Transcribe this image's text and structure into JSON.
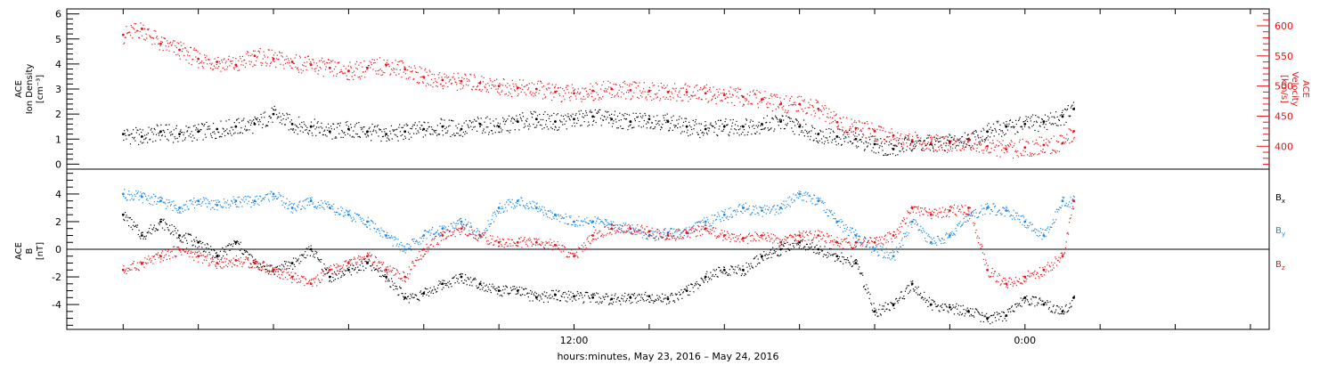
{
  "chart_data": [
    {
      "type": "scatter",
      "panel": "top",
      "left_axis": {
        "label_lines": [
          "ACE",
          "Ion Density",
          "[cm⁻³]"
        ],
        "ticks": [
          "0",
          "1",
          "2",
          "3",
          "4",
          "5",
          "6"
        ],
        "ylim": [
          -0.2,
          6.2
        ]
      },
      "right_axis": {
        "label_lines": [
          "ACE",
          "Velocity",
          "[km/s]"
        ],
        "ticks": [
          "400",
          "450",
          "500",
          "550",
          "600"
        ],
        "ylim": [
          362,
          628
        ],
        "color": "#e8141a"
      },
      "series": [
        {
          "name": "Ion Density",
          "axis": "left",
          "color": "#000000",
          "x": [
            0,
            0.5,
            1,
            1.5,
            2,
            2.5,
            3,
            3.5,
            4,
            4.5,
            5,
            5.5,
            6,
            6.5,
            7,
            7.5,
            8,
            8.5,
            9,
            9.5,
            10,
            10.5,
            11,
            11.5,
            12,
            12.5,
            13,
            13.5,
            14,
            14.5,
            15,
            15.5,
            16,
            16.5,
            17,
            17.5,
            18,
            18.5,
            19,
            19.5,
            20,
            20.5,
            21,
            21.5,
            22,
            22.5,
            23,
            23.5,
            24,
            24.5,
            25,
            25.3
          ],
          "y": [
            1.2,
            1.1,
            1.3,
            1.2,
            1.3,
            1.4,
            1.5,
            1.6,
            2.0,
            1.6,
            1.5,
            1.3,
            1.4,
            1.3,
            1.2,
            1.3,
            1.4,
            1.5,
            1.4,
            1.6,
            1.5,
            1.7,
            1.8,
            1.7,
            1.8,
            1.9,
            1.8,
            1.7,
            1.8,
            1.7,
            1.5,
            1.4,
            1.5,
            1.5,
            1.6,
            1.7,
            1.5,
            1.2,
            1.1,
            1.0,
            0.8,
            0.6,
            0.9,
            0.8,
            0.9,
            1.0,
            1.3,
            1.5,
            1.6,
            1.7,
            1.9,
            2.2
          ]
        },
        {
          "name": "Velocity",
          "axis": "right",
          "color": "#e8141a",
          "x": [
            0,
            0.5,
            1,
            1.5,
            2,
            2.5,
            3,
            3.5,
            4,
            4.5,
            5,
            5.5,
            6,
            6.5,
            7,
            7.5,
            8,
            8.5,
            9,
            9.5,
            10,
            10.5,
            11,
            11.5,
            12,
            12.5,
            13,
            13.5,
            14,
            14.5,
            15,
            15.5,
            16,
            16.5,
            17,
            17.5,
            18,
            18.5,
            19,
            19.5,
            20,
            20.5,
            21,
            21.5,
            22,
            22.5,
            23,
            23.5,
            24,
            24.5,
            25,
            25.3
          ],
          "y": [
            585,
            595,
            570,
            560,
            545,
            540,
            535,
            550,
            545,
            540,
            535,
            530,
            525,
            530,
            535,
            528,
            515,
            510,
            508,
            505,
            500,
            497,
            495,
            490,
            488,
            492,
            495,
            493,
            492,
            490,
            490,
            488,
            485,
            482,
            478,
            470,
            470,
            462,
            440,
            430,
            425,
            418,
            410,
            405,
            405,
            410,
            400,
            395,
            398,
            402,
            405,
            425
          ]
        }
      ]
    },
    {
      "type": "scatter",
      "panel": "bottom",
      "left_axis": {
        "label_lines": [
          "ACE",
          "B",
          "[nT]"
        ],
        "ticks": [
          "-4",
          "-2",
          "0",
          "2",
          "4"
        ],
        "ylim": [
          -5.8,
          5.8
        ]
      },
      "zero_line": 0,
      "series": [
        {
          "name": "Bx",
          "color": "#000000",
          "x": [
            0,
            0.5,
            1,
            1.5,
            2,
            2.5,
            3,
            3.5,
            4,
            4.5,
            5,
            5.5,
            6,
            6.5,
            7,
            7.5,
            8,
            8.5,
            9,
            9.5,
            10,
            10.5,
            11,
            11.5,
            12,
            12.5,
            13,
            13.5,
            14,
            14.5,
            15,
            15.5,
            16,
            16.5,
            17,
            17.5,
            18,
            18.5,
            19,
            19.5,
            20,
            20.5,
            21,
            21.5,
            22,
            22.5,
            23,
            23.5,
            24,
            24.5,
            25,
            25.3
          ],
          "y": [
            2.5,
            1.0,
            2.0,
            1.0,
            0.5,
            -0.5,
            0.5,
            -1.0,
            -1.5,
            -1.0,
            0.0,
            -2.0,
            -1.5,
            -1.0,
            -2.0,
            -3.5,
            -3.2,
            -2.5,
            -2.0,
            -2.5,
            -3.0,
            -3.0,
            -3.5,
            -3.3,
            -3.4,
            -3.5,
            -3.6,
            -3.5,
            -3.4,
            -3.6,
            -3.0,
            -2.0,
            -1.5,
            -1.5,
            -0.5,
            0.0,
            0.5,
            0.0,
            -0.5,
            -1.0,
            -4.5,
            -4.0,
            -2.5,
            -4.0,
            -4.2,
            -4.5,
            -5.0,
            -4.8,
            -3.5,
            -4.0,
            -4.5,
            -3.5
          ]
        },
        {
          "name": "By",
          "color": "#1e88e5",
          "x": [
            0,
            0.5,
            1,
            1.5,
            2,
            2.5,
            3,
            3.5,
            4,
            4.5,
            5,
            5.5,
            6,
            6.5,
            7,
            7.5,
            8,
            8.5,
            9,
            9.5,
            10,
            10.5,
            11,
            11.5,
            12,
            12.5,
            13,
            13.5,
            14,
            14.5,
            15,
            15.5,
            16,
            16.5,
            17,
            17.5,
            18,
            18.5,
            19,
            19.5,
            20,
            20.5,
            21,
            21.5,
            22,
            22.5,
            23,
            23.5,
            24,
            24.5,
            25,
            25.3
          ],
          "y": [
            4.0,
            3.8,
            3.5,
            3.0,
            3.5,
            3.2,
            3.5,
            3.5,
            4.0,
            3.0,
            3.5,
            3.0,
            2.5,
            2.0,
            1.0,
            0.0,
            1.0,
            1.5,
            2.0,
            1.0,
            3.0,
            3.5,
            3.0,
            2.5,
            2.0,
            2.0,
            1.8,
            1.5,
            1.0,
            1.2,
            1.2,
            2.0,
            2.5,
            3.0,
            2.8,
            3.0,
            4.0,
            3.5,
            2.0,
            1.0,
            0.0,
            -0.5,
            2.0,
            0.5,
            1.0,
            2.5,
            3.0,
            2.8,
            2.0,
            1.0,
            3.5,
            3.5
          ]
        },
        {
          "name": "Bz",
          "color": "#e8141a",
          "x": [
            0,
            0.5,
            1,
            1.5,
            2,
            2.5,
            3,
            3.5,
            4,
            4.5,
            5,
            5.5,
            6,
            6.5,
            7,
            7.5,
            8,
            8.5,
            9,
            9.5,
            10,
            10.5,
            11,
            11.5,
            12,
            12.5,
            13,
            13.5,
            14,
            14.5,
            15,
            15.5,
            16,
            16.5,
            17,
            17.5,
            18,
            18.5,
            19,
            19.5,
            20,
            20.5,
            21,
            21.5,
            22,
            22.5,
            23,
            23.5,
            24,
            24.5,
            25,
            25.3
          ],
          "y": [
            -1.5,
            -1.0,
            -0.5,
            0.0,
            -0.5,
            -1.0,
            -0.8,
            -1.0,
            -1.5,
            -2.0,
            -2.5,
            -1.5,
            -1.0,
            -0.5,
            -1.5,
            -2.0,
            0.0,
            1.0,
            1.5,
            1.0,
            0.5,
            0.5,
            0.5,
            0.3,
            -0.5,
            1.0,
            1.5,
            1.5,
            1.3,
            1.0,
            1.2,
            1.5,
            1.0,
            0.8,
            1.0,
            0.5,
            1.0,
            1.0,
            0.5,
            0.5,
            0.5,
            1.0,
            3.0,
            2.5,
            2.8,
            3.0,
            -1.5,
            -2.5,
            -2.0,
            -1.5,
            -0.5,
            3.5
          ]
        }
      ],
      "legend": [
        {
          "label": "B",
          "sub": "x",
          "color": "#000000"
        },
        {
          "label": "B",
          "sub": "y",
          "color": "#1e88e5"
        },
        {
          "label": "B",
          "sub": "z",
          "color": "#e8141a"
        }
      ]
    }
  ],
  "x_axis": {
    "range_hours": [
      -1.5,
      30.5
    ],
    "tick_labels": [
      {
        "hour": 12,
        "label": "12:00"
      },
      {
        "hour": 24,
        "label": "0:00"
      }
    ],
    "xlabel": "hours:minutes, May 23, 2016 – May 24, 2016"
  }
}
